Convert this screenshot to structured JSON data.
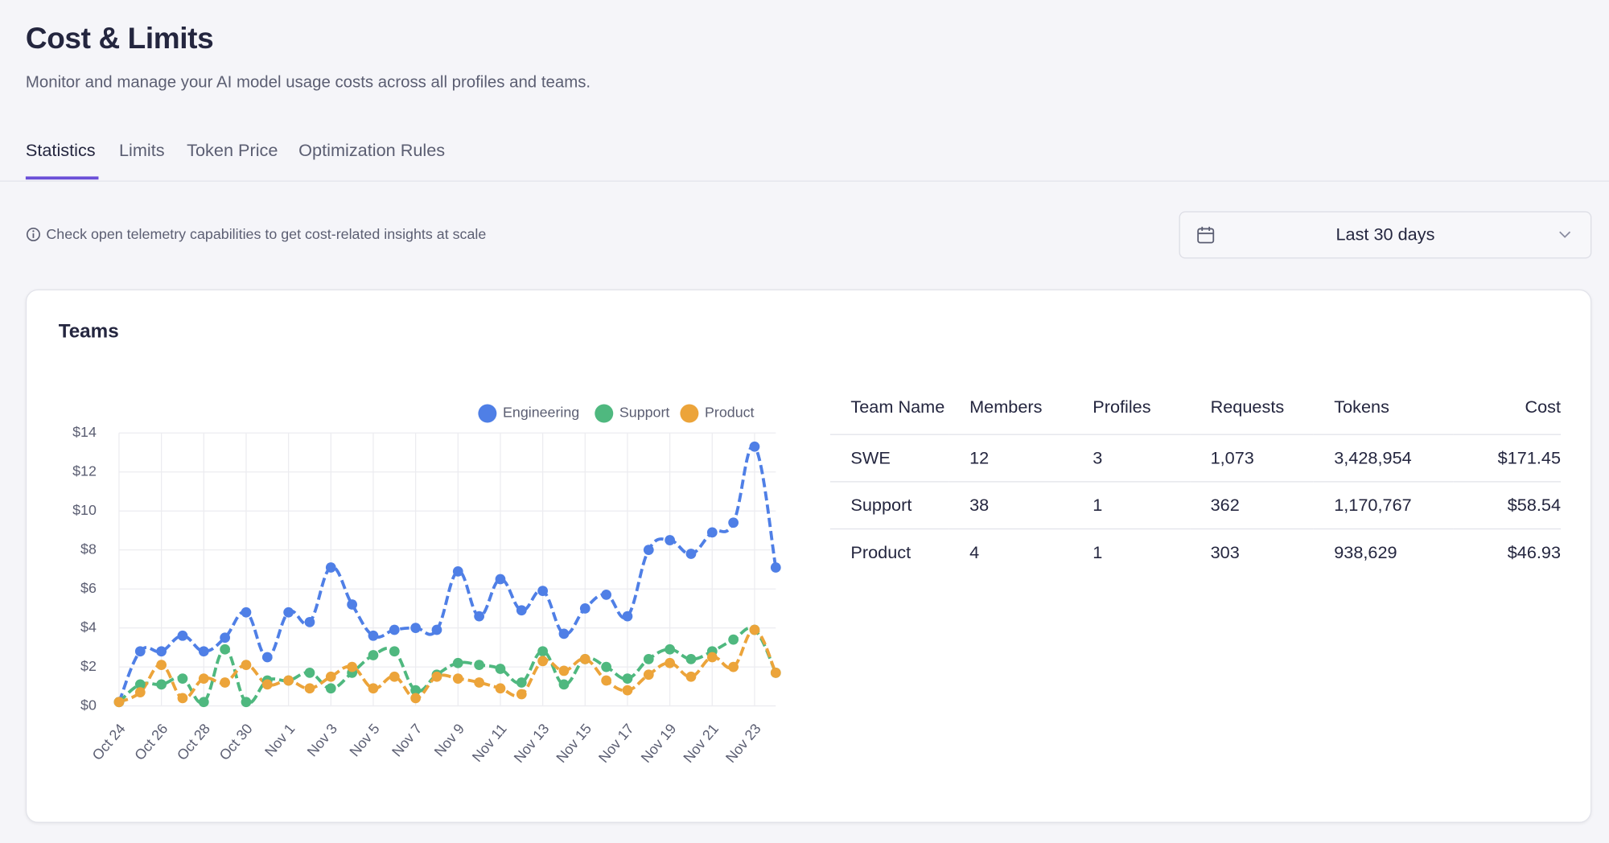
{
  "header": {
    "title": "Cost & Limits",
    "subtitle": "Monitor and manage your AI model usage costs across all profiles and teams."
  },
  "tabs": [
    "Statistics",
    "Limits",
    "Token Price",
    "Optimization Rules"
  ],
  "info": "Check open telemetry capabilities to get cost-related insights at scale",
  "date_range": "Last 30 days",
  "card_title": "Teams",
  "chart_data": {
    "type": "line",
    "categories": [
      "Oct 24",
      null,
      "Oct 26",
      null,
      "Oct 28",
      null,
      "Oct 30",
      null,
      "Nov 1",
      null,
      "Nov 3",
      null,
      "Nov 5",
      null,
      "Nov 7",
      null,
      "Nov 9",
      null,
      "Nov 11",
      null,
      "Nov 13",
      null,
      "Nov 15",
      null,
      "Nov 17",
      null,
      "Nov 19",
      null,
      "Nov 21",
      null,
      "Nov 23",
      null
    ],
    "series": [
      {
        "name": "Engineering",
        "color": "#4f7fe6",
        "values": [
          0.2,
          2.8,
          2.8,
          3.6,
          2.8,
          3.5,
          4.8,
          2.5,
          4.8,
          4.3,
          7.1,
          5.2,
          3.6,
          3.9,
          4.0,
          3.9,
          6.9,
          4.6,
          6.5,
          4.9,
          5.9,
          3.7,
          5.0,
          5.7,
          4.6,
          8.0,
          8.5,
          7.8,
          8.9,
          9.4,
          13.3,
          7.1
        ]
      },
      {
        "name": "Support",
        "color": "#4fb87f",
        "values": [
          0.2,
          1.1,
          1.1,
          1.4,
          0.2,
          2.9,
          0.2,
          1.3,
          1.3,
          1.7,
          0.9,
          1.7,
          2.6,
          2.8,
          0.8,
          1.6,
          2.2,
          2.1,
          1.9,
          1.2,
          2.8,
          1.1,
          2.4,
          2.0,
          1.4,
          2.4,
          2.9,
          2.4,
          2.8,
          3.4,
          3.9,
          1.7
        ]
      },
      {
        "name": "Product",
        "color": "#eca43a",
        "values": [
          0.2,
          0.7,
          2.1,
          0.4,
          1.4,
          1.2,
          2.1,
          1.1,
          1.3,
          0.9,
          1.5,
          2.0,
          0.9,
          1.5,
          0.4,
          1.5,
          1.4,
          1.2,
          0.9,
          0.6,
          2.3,
          1.8,
          2.4,
          1.3,
          0.8,
          1.6,
          2.2,
          1.5,
          2.5,
          2.0,
          3.9,
          1.7
        ]
      }
    ],
    "ylim": [
      0,
      14
    ],
    "yticks": [
      {
        "value": 0,
        "label": "$0"
      },
      {
        "value": 2,
        "label": "$2"
      },
      {
        "value": 4,
        "label": "$4"
      },
      {
        "value": 6,
        "label": "$6"
      },
      {
        "value": 8,
        "label": "$8"
      },
      {
        "value": 10,
        "label": "$10"
      },
      {
        "value": 12,
        "label": "$12"
      },
      {
        "value": 14,
        "label": "$14"
      }
    ],
    "grid": true,
    "legend": "top-right"
  },
  "table": {
    "columns": [
      "Team Name",
      "Members",
      "Profiles",
      "Requests",
      "Tokens",
      "Cost"
    ],
    "rows": [
      [
        "SWE",
        "12",
        "3",
        "1,073",
        "3,428,954",
        "$171.45"
      ],
      [
        "Support",
        "38",
        "1",
        "362",
        "1,170,767",
        "$58.54"
      ],
      [
        "Product",
        "4",
        "1",
        "303",
        "938,629",
        "$46.93"
      ]
    ]
  }
}
